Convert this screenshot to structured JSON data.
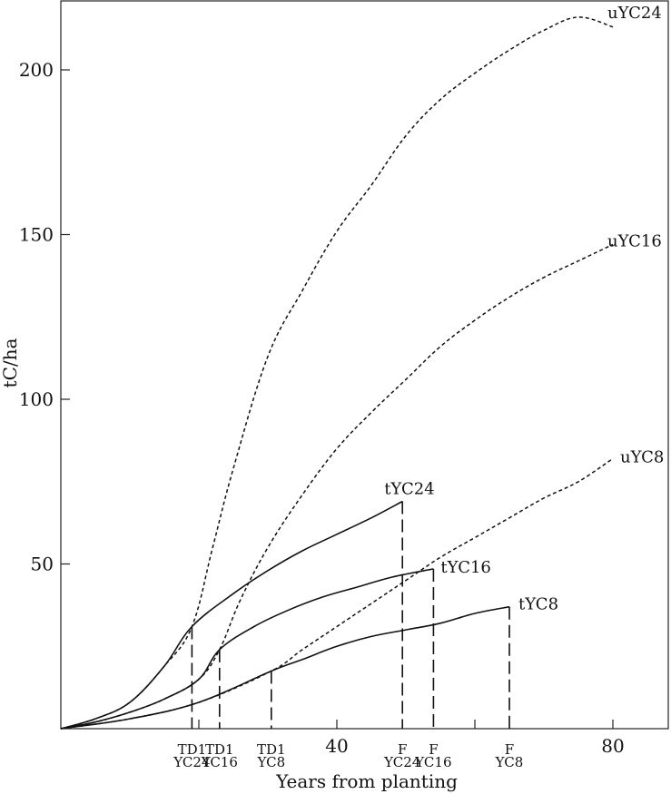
{
  "chart_data": {
    "type": "line",
    "title": "",
    "xlabel": "Years from planting",
    "ylabel": "tC/ha",
    "xlim": [
      0,
      90
    ],
    "ylim": [
      0,
      220
    ],
    "x_ticks": [
      {
        "value": 40,
        "label": "40"
      },
      {
        "value": 80,
        "label": "80"
      }
    ],
    "y_ticks": [
      {
        "value": 50,
        "label": "50"
      },
      {
        "value": 100,
        "label": "100"
      },
      {
        "value": 150,
        "label": "150"
      },
      {
        "value": 200,
        "label": "200"
      }
    ],
    "minor_x_ticks": [
      20,
      60
    ],
    "events": [
      {
        "x": 19,
        "line1": "TD1",
        "line2": "YC24",
        "y_top": 31
      },
      {
        "x": 23,
        "line1": "TD1",
        "line2": "YC16",
        "y_top": 24
      },
      {
        "x": 30.5,
        "line1": "TD1",
        "line2": "YC8",
        "y_top": 17.5
      },
      {
        "x": 49.5,
        "line1": "F",
        "line2": "YC24",
        "y_top": 69
      },
      {
        "x": 54,
        "line1": "F",
        "line2": "YC16",
        "y_top": 48.5
      },
      {
        "x": 65,
        "line1": "F",
        "line2": "YC8",
        "y_top": 37
      }
    ],
    "series": [
      {
        "name": "uYC24",
        "style": "dashed",
        "x": [
          0,
          5,
          10,
          15,
          19,
          22,
          25,
          30,
          35,
          40,
          45,
          50,
          55,
          60,
          65,
          70,
          75,
          80
        ],
        "y": [
          0,
          3,
          8,
          19,
          31,
          55,
          79,
          113,
          133,
          151,
          165,
          180,
          191,
          199,
          206,
          212,
          216,
          213
        ]
      },
      {
        "name": "uYC16",
        "style": "dashed",
        "x": [
          0,
          5,
          10,
          15,
          20,
          23,
          26,
          30,
          35,
          40,
          45,
          50,
          55,
          60,
          65,
          70,
          75,
          80
        ],
        "y": [
          0,
          2,
          5,
          9,
          15,
          24,
          39,
          55,
          71,
          85,
          96,
          106,
          116,
          124,
          131,
          137,
          142,
          147
        ]
      },
      {
        "name": "uYC8",
        "style": "dashed",
        "x": [
          0,
          10,
          20,
          30.5,
          35,
          40,
          45,
          50,
          55,
          60,
          65,
          70,
          75,
          80
        ],
        "y": [
          0,
          3,
          8,
          17.5,
          24,
          31,
          38,
          45,
          52,
          58,
          64,
          70,
          75,
          82
        ]
      },
      {
        "name": "tYC24",
        "style": "solid",
        "x": [
          0,
          5,
          10,
          15,
          19,
          25,
          30,
          35,
          40,
          45,
          49.5
        ],
        "y": [
          0,
          3,
          8,
          19,
          31,
          41,
          48,
          54,
          59,
          64,
          69
        ]
      },
      {
        "name": "tYC16",
        "style": "solid",
        "x": [
          0,
          5,
          10,
          15,
          20,
          23,
          28,
          33,
          38,
          43,
          48,
          54
        ],
        "y": [
          0,
          2,
          5,
          9,
          15,
          24,
          31,
          36,
          40,
          43,
          46,
          48.5
        ]
      },
      {
        "name": "tYC8",
        "style": "solid",
        "x": [
          0,
          10,
          20,
          30.5,
          35,
          40,
          45,
          50,
          55,
          60,
          65
        ],
        "y": [
          0,
          3,
          8,
          17.5,
          21,
          25,
          28,
          30,
          32,
          35,
          37
        ]
      }
    ]
  }
}
